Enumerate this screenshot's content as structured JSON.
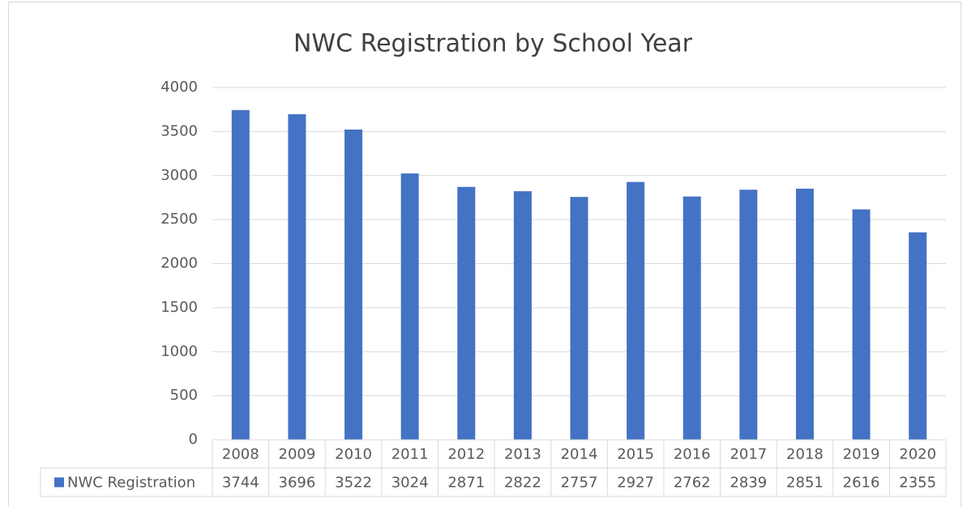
{
  "chart_data": {
    "type": "bar",
    "title": "NWC Registration by School Year",
    "categories": [
      "2008",
      "2009",
      "2010",
      "2011",
      "2012",
      "2013",
      "2014",
      "2015",
      "2016",
      "2017",
      "2018",
      "2019",
      "2020"
    ],
    "series": [
      {
        "name": "NWC Registration",
        "color": "#4472c4",
        "values": [
          3744,
          3696,
          3522,
          3024,
          2871,
          2822,
          2757,
          2927,
          2762,
          2839,
          2851,
          2616,
          2355
        ]
      }
    ],
    "ylim": [
      0,
      4000
    ],
    "yticks": [
      0,
      500,
      1000,
      1500,
      2000,
      2500,
      3000,
      3500,
      4000
    ],
    "grid": true,
    "data_table": true
  }
}
